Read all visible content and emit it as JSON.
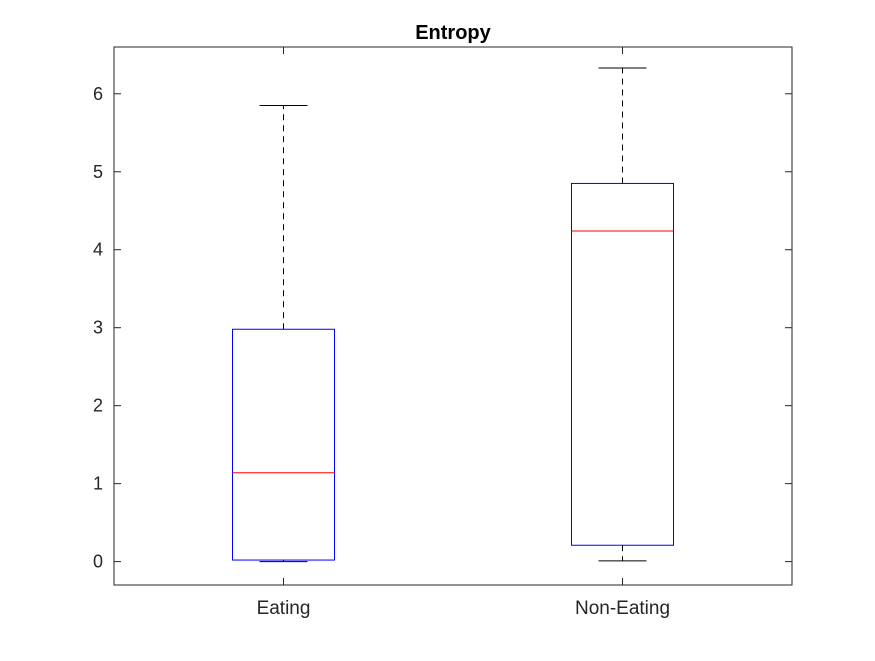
{
  "chart_data": {
    "type": "box",
    "title": "Entropy",
    "xlabel": "",
    "ylabel": "",
    "categories": [
      "Eating",
      "Non-Eating"
    ],
    "boxes": [
      {
        "category": "Eating",
        "whisker_low": 0.0,
        "q1": 0.02,
        "median": 1.14,
        "q3": 2.98,
        "whisker_high": 5.85
      },
      {
        "category": "Non-Eating",
        "whisker_low": 0.01,
        "q1": 0.21,
        "median": 4.24,
        "q3": 4.85,
        "whisker_high": 6.33
      }
    ],
    "ylim": [
      -0.3,
      6.6
    ],
    "yticks": [
      0,
      1,
      2,
      3,
      4,
      5,
      6
    ],
    "ytick_labels": [
      "0",
      "1",
      "2",
      "3",
      "4",
      "5",
      "6"
    ],
    "grid": false,
    "colors": {
      "box": "#0000ff",
      "median": "#ff0000",
      "whisker": "#000000",
      "axes": "#262626"
    }
  }
}
